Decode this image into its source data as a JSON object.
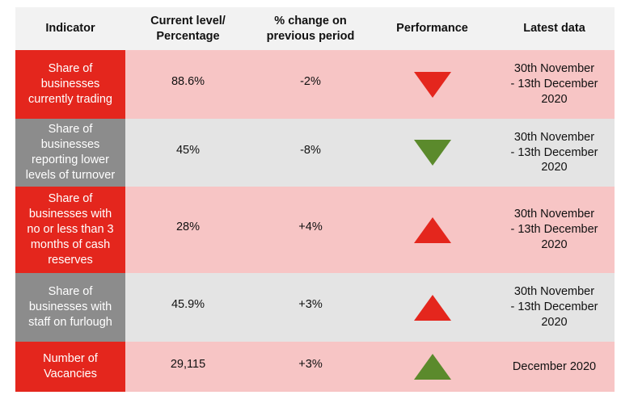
{
  "header": {
    "indicator": "Indicator",
    "current": "Current level/\nPercentage",
    "change": "% change on\nprevious period",
    "performance": "Performance",
    "latest": "Latest data"
  },
  "rows": [
    {
      "indicator": "Share of\nbusinesses\ncurrently trading",
      "current": "88.6%",
      "change": "-2%",
      "performance": "down",
      "performance_color": "#e4261d",
      "latest": "30th November\n- 13th December\n2020"
    },
    {
      "indicator": "Share of\nbusinesses\nreporting lower\nlevels of turnover",
      "current": "45%",
      "change": "-8%",
      "performance": "down",
      "performance_color": "#5b8a2c",
      "latest": "30th November\n- 13th December\n2020"
    },
    {
      "indicator": "Share of\nbusinesses with\nno or less than 3\nmonths of cash\nreserves",
      "current": "28%",
      "change": "+4%",
      "performance": "up",
      "performance_color": "#e4261d",
      "latest": "30th November\n- 13th December\n2020"
    },
    {
      "indicator": "Share of\nbusinesses with\nstaff on furlough",
      "current": "45.9%",
      "change": "+3%",
      "performance": "up",
      "performance_color": "#e4261d",
      "latest": "30th November\n- 13th December\n2020"
    },
    {
      "indicator": "Number of\nVacancies",
      "current": "29,115",
      "change": "+3%",
      "performance": "up",
      "performance_color": "#5b8a2c",
      "latest": "December 2020"
    }
  ],
  "colors": {
    "indicator_red": "#e4261d",
    "indicator_grey": "#8c8c8c",
    "row_pink": "#f7c5c5",
    "row_grey": "#e4e4e4",
    "header_bg": "#f2f2f2"
  }
}
